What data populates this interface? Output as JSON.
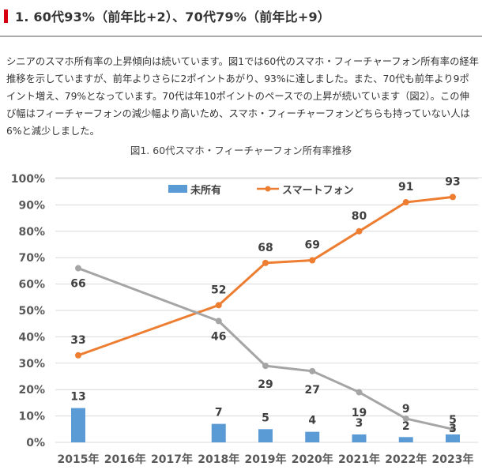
{
  "heading": {
    "title": "1. 60代93%（前年比+2）、70代79%（前年比+9）",
    "accent_color": "#d7000f"
  },
  "body_text": "シニアのスマホ所有率の上昇傾向は続いています。図1では60代のスマホ・フィーチャーフォン所有率の経年推移を示していますが、前年よりさらに2ポイントあがり、93%に達しました。また、70代も前年より9ポイント増え、79%となっています。70代は年10ポイントのペースでの上昇が続いています（図2）。この伸び幅はフィーチャーフォンの減少幅より高いため、スマホ・フィーチャーフォンどちらも持っていない人は6%と減少しました。",
  "chart_data": {
    "type": "bar+line",
    "title": "図1. 60代スマホ・フィーチャーフォン所有率推移",
    "xlabel": "",
    "ylabel": "",
    "ylim": [
      0,
      100
    ],
    "yticks": [
      "0%",
      "10%",
      "20%",
      "30%",
      "40%",
      "50%",
      "60%",
      "70%",
      "80%",
      "90%",
      "100%"
    ],
    "categories": [
      "2015年",
      "2016年",
      "2017年",
      "2018年",
      "2019年",
      "2020年",
      "2021年",
      "2022年",
      "2023年"
    ],
    "grid": true,
    "legend_position": "top",
    "series": [
      {
        "name": "未所有",
        "type": "bar",
        "color": "#5b9bd5",
        "values": [
          13,
          null,
          null,
          7,
          5,
          4,
          3,
          2,
          3
        ]
      },
      {
        "name": "スマートフォン",
        "type": "line",
        "color": "#ed7d31",
        "values": [
          33,
          null,
          null,
          52,
          68,
          69,
          80,
          91,
          93
        ]
      },
      {
        "name": "",
        "type": "line",
        "color": "#a5a5a5",
        "values": [
          66,
          null,
          null,
          46,
          29,
          27,
          19,
          9,
          5
        ]
      }
    ]
  }
}
